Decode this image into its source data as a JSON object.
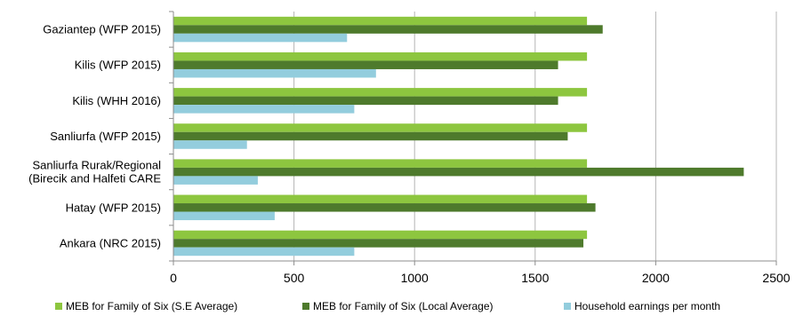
{
  "chart_data": {
    "type": "bar",
    "orientation": "horizontal",
    "title": "",
    "xlabel": "",
    "ylabel": "",
    "categories": [
      [
        "Gaziantep (WFP 2015)"
      ],
      [
        "Kilis (WFP 2015)"
      ],
      [
        "Kilis (WHH 2016)"
      ],
      [
        "Sanliurfa (WFP 2015)"
      ],
      [
        "Sanliurfa Rurak/Regional",
        "(Birecik and Halfeti  CARE"
      ],
      [
        "Hatay (WFP 2015)"
      ],
      [
        "Ankara (NRC 2015)"
      ]
    ],
    "series": [
      {
        "name": "MEB for Family of Six  (S.E Average)",
        "color": "#8dc63f",
        "values": [
          1715,
          1715,
          1715,
          1715,
          1715,
          1715,
          1715
        ]
      },
      {
        "name": "MEB for Family of Six (Local Average)",
        "color": "#4e7a2c",
        "values": [
          1780,
          1595,
          1595,
          1635,
          2365,
          1750,
          1700
        ]
      },
      {
        "name": "Household earnings per month",
        "color": "#93cddd",
        "values": [
          720,
          840,
          750,
          305,
          350,
          420,
          750
        ]
      }
    ],
    "xlim": [
      0,
      2500
    ],
    "xticks": [
      0,
      500,
      1000,
      1500,
      2000,
      2500
    ],
    "grid": "vertical",
    "legend": "bottom"
  }
}
